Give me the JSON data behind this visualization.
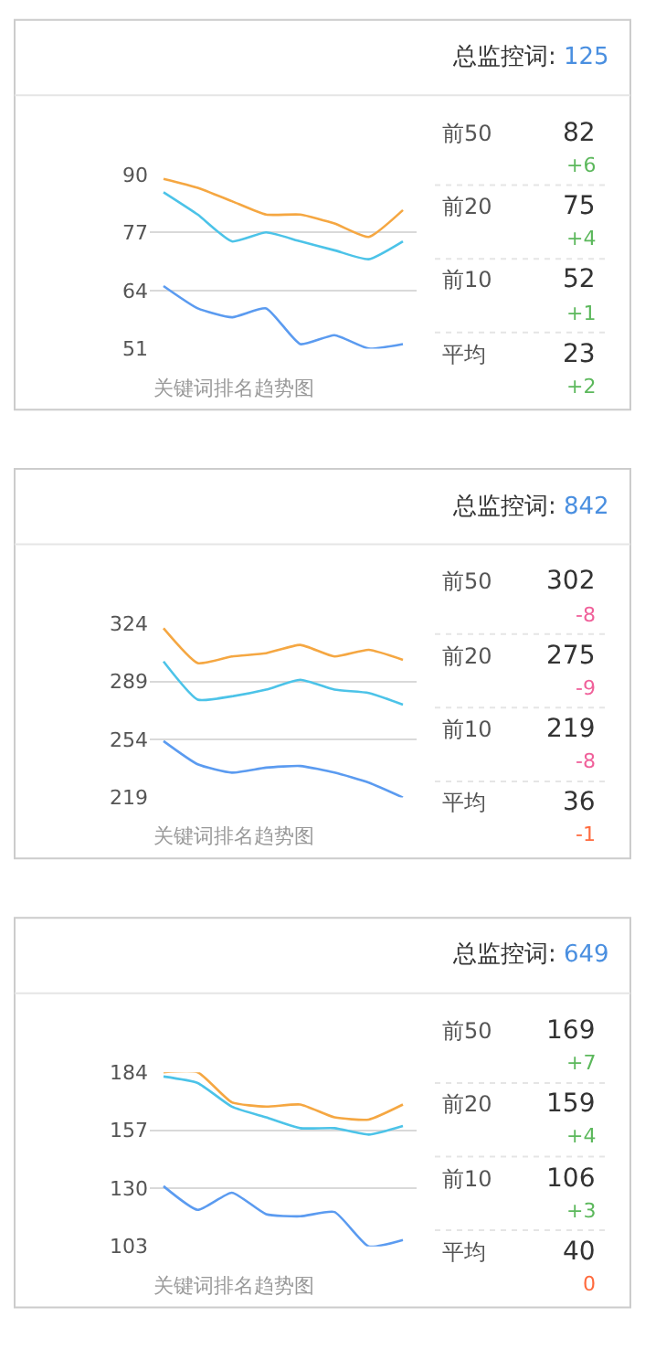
{
  "chart_data": [
    {
      "type": "line",
      "xlabel": "关键词排名趋势图",
      "categories": [
        null,
        null,
        null,
        null,
        null,
        null,
        null,
        null
      ],
      "ylim": [
        51,
        90
      ],
      "yticks": [
        51,
        64,
        77,
        90
      ],
      "grid": "y",
      "tick_labels": "y",
      "series": [
        {
          "color": "#f5a742",
          "values": [
            89,
            87,
            84,
            81,
            81,
            79,
            76,
            82
          ]
        },
        {
          "color": "#4cc3e8",
          "values": [
            86,
            81,
            75,
            77,
            75,
            73,
            71,
            75
          ]
        },
        {
          "color": "#5b9bf0",
          "values": [
            65,
            60,
            58,
            60,
            52,
            54,
            51,
            52
          ]
        }
      ]
    },
    {
      "type": "other",
      "title": "总监控词:",
      "subtitle": "125",
      "annotations": [
        "前50",
        "82",
        "+6",
        "前20",
        "75",
        "+4",
        "前10",
        "52",
        "+1",
        "平均",
        "23",
        "+2"
      ],
      "colors": [
        "#5cb85c",
        "#5cb85c",
        "#5cb85c",
        "#5cb85c"
      ]
    },
    {
      "type": "line",
      "xlabel": "关键词排名趋势图",
      "categories": [
        null,
        null,
        null,
        null,
        null,
        null,
        null,
        null
      ],
      "ylim": [
        219,
        324
      ],
      "yticks": [
        219,
        254,
        289,
        324
      ],
      "grid": "y",
      "tick_labels": "y",
      "series": [
        {
          "color": "#f5a742",
          "values": [
            321,
            300,
            304,
            306,
            311,
            304,
            308,
            302
          ]
        },
        {
          "color": "#4cc3e8",
          "values": [
            301,
            278,
            280,
            284,
            290,
            284,
            282,
            275
          ]
        },
        {
          "color": "#5b9bf0",
          "values": [
            253,
            239,
            234,
            237,
            238,
            234,
            228,
            219
          ]
        }
      ]
    },
    {
      "type": "other",
      "title": "总监控词:",
      "subtitle": "842",
      "annotations": [
        "前50",
        "302",
        "-8",
        "前20",
        "275",
        "-9",
        "前10",
        "219",
        "-8",
        "平均",
        "36",
        "-1"
      ],
      "colors": [
        "#f0609a",
        "#f0609a",
        "#f0609a",
        "#ff6a3d"
      ]
    },
    {
      "type": "line",
      "xlabel": "关键词排名趋势图",
      "categories": [
        null,
        null,
        null,
        null,
        null,
        null,
        null,
        null
      ],
      "ylim": [
        103,
        184
      ],
      "yticks": [
        103,
        130,
        157,
        184
      ],
      "grid": "y",
      "tick_labels": "y",
      "series": [
        {
          "color": "#f5a742",
          "values": [
            184,
            184,
            170,
            168,
            169,
            163,
            162,
            169
          ]
        },
        {
          "color": "#4cc3e8",
          "values": [
            182,
            179,
            168,
            163,
            158,
            158,
            155,
            159
          ]
        },
        {
          "color": "#5b9bf0",
          "values": [
            131,
            120,
            128,
            118,
            117,
            119,
            103,
            106
          ]
        }
      ]
    },
    {
      "type": "other",
      "title": "总监控词:",
      "subtitle": "649",
      "annotations": [
        "前50",
        "169",
        "+7",
        "前20",
        "159",
        "+4",
        "前10",
        "106",
        "+3",
        "平均",
        "40",
        "0"
      ],
      "colors": [
        "#5cb85c",
        "#5cb85c",
        "#5cb85c",
        "#ff6a3d"
      ]
    }
  ]
}
